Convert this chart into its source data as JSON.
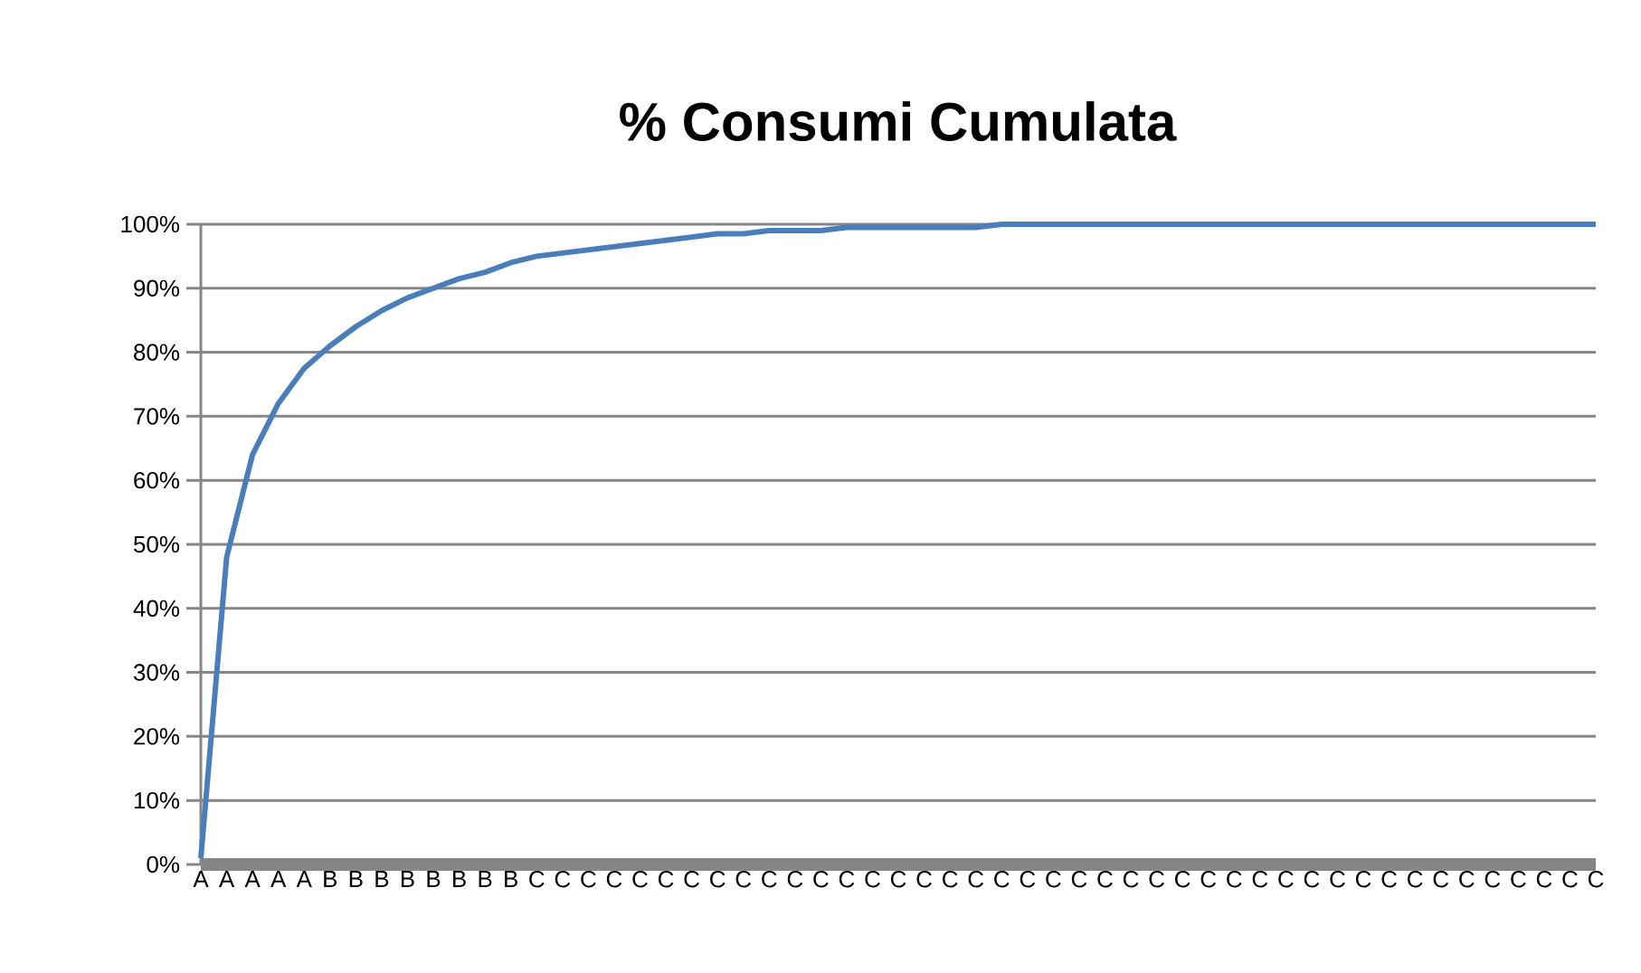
{
  "chart_data": {
    "type": "line",
    "title": "% Consumi Cumulata",
    "categories": [
      "A",
      "A",
      "A",
      "A",
      "A",
      "B",
      "B",
      "B",
      "B",
      "B",
      "B",
      "B",
      "B",
      "C",
      "C",
      "C",
      "C",
      "C",
      "C",
      "C",
      "C",
      "C",
      "C",
      "C",
      "C",
      "C",
      "C",
      "C",
      "C",
      "C",
      "C",
      "C",
      "C",
      "C",
      "C",
      "C",
      "C",
      "C",
      "C",
      "C",
      "C",
      "C",
      "C",
      "C",
      "C",
      "C",
      "C",
      "C",
      "C",
      "C",
      "C",
      "C",
      "C",
      "C",
      "C"
    ],
    "series": [
      {
        "color": "#4a7ebb",
        "values": [
          1,
          48,
          64,
          72,
          77.5,
          81,
          84,
          86.5,
          88.5,
          90,
          91.5,
          92.5,
          94,
          95,
          95.5,
          96,
          96.5,
          97,
          97.5,
          98,
          98.5,
          98.5,
          99,
          99,
          99,
          99.5,
          99.5,
          99.5,
          99.5,
          99.5,
          99.5,
          100,
          100,
          100,
          100,
          100,
          100,
          100,
          100,
          100,
          100,
          100,
          100,
          100,
          100,
          100,
          100,
          100,
          100,
          100,
          100,
          100,
          100,
          100,
          100
        ]
      }
    ],
    "ylim": [
      0,
      100
    ],
    "yticks": [
      {
        "value": 0,
        "label": "0%"
      },
      {
        "value": 10,
        "label": "10%"
      },
      {
        "value": 20,
        "label": "20%"
      },
      {
        "value": 30,
        "label": "30%"
      },
      {
        "value": 40,
        "label": "40%"
      },
      {
        "value": 50,
        "label": "50%"
      },
      {
        "value": 60,
        "label": "60%"
      },
      {
        "value": 70,
        "label": "70%"
      },
      {
        "value": 80,
        "label": "80%"
      },
      {
        "value": 90,
        "label": "90%"
      },
      {
        "value": 100,
        "label": "100%"
      }
    ],
    "grid": "y",
    "marker": "none",
    "line_style": "solid"
  }
}
